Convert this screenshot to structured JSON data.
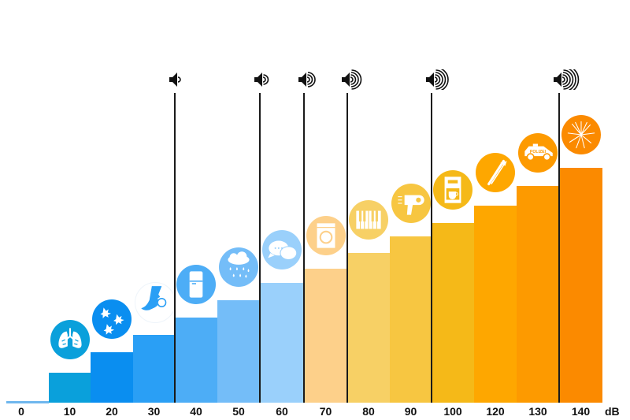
{
  "chart_data": {
    "type": "bar",
    "title": "",
    "xlabel": "dB",
    "ylabel": "",
    "categories": [
      "0",
      "10",
      "20",
      "30",
      "40",
      "50",
      "60",
      "70",
      "80",
      "90",
      "100",
      "120",
      "130",
      "140"
    ],
    "values": [
      0,
      10,
      20,
      30,
      40,
      50,
      60,
      70,
      80,
      90,
      100,
      120,
      130,
      140
    ],
    "unit": "dB",
    "grid": false,
    "legend": "none",
    "bar_colors": [
      "#6fb7ee",
      "#0aa0db",
      "#0a8ef0",
      "#2a9ff5",
      "#4dadf6",
      "#74bdf8",
      "#9ad0fb",
      "#fdd08a",
      "#f7d065",
      "#f7c641",
      "#f5b918",
      "#fea700",
      "#fd9a00",
      "#fb8a00"
    ],
    "icons": [
      {
        "category": "0",
        "icon": "none"
      },
      {
        "category": "10",
        "icon": "lungs-icon"
      },
      {
        "category": "20",
        "icon": "falling-leaves-icon"
      },
      {
        "category": "30",
        "icon": "whisper-face-icon"
      },
      {
        "category": "40",
        "icon": "refrigerator-icon"
      },
      {
        "category": "50",
        "icon": "rain-cloud-icon"
      },
      {
        "category": "60",
        "icon": "speech-bubbles-icon"
      },
      {
        "category": "70",
        "icon": "washing-machine-icon"
      },
      {
        "category": "80",
        "icon": "piano-keys-icon"
      },
      {
        "category": "90",
        "icon": "hair-dryer-icon"
      },
      {
        "category": "100",
        "icon": "coffee-machine-icon"
      },
      {
        "category": "120",
        "icon": "trombone-icon"
      },
      {
        "category": "130",
        "icon": "police-car-icon"
      },
      {
        "category": "140",
        "icon": "fireworks-icon"
      }
    ],
    "loudness_markers": [
      {
        "at": "40",
        "level": 1
      },
      {
        "at": "60",
        "level": 2
      },
      {
        "at": "70",
        "level": 3
      },
      {
        "at": "80",
        "level": 4
      },
      {
        "at": "100",
        "level": 5
      },
      {
        "at": "140",
        "level": 6
      }
    ],
    "police_car_text": "POLIZEI"
  }
}
